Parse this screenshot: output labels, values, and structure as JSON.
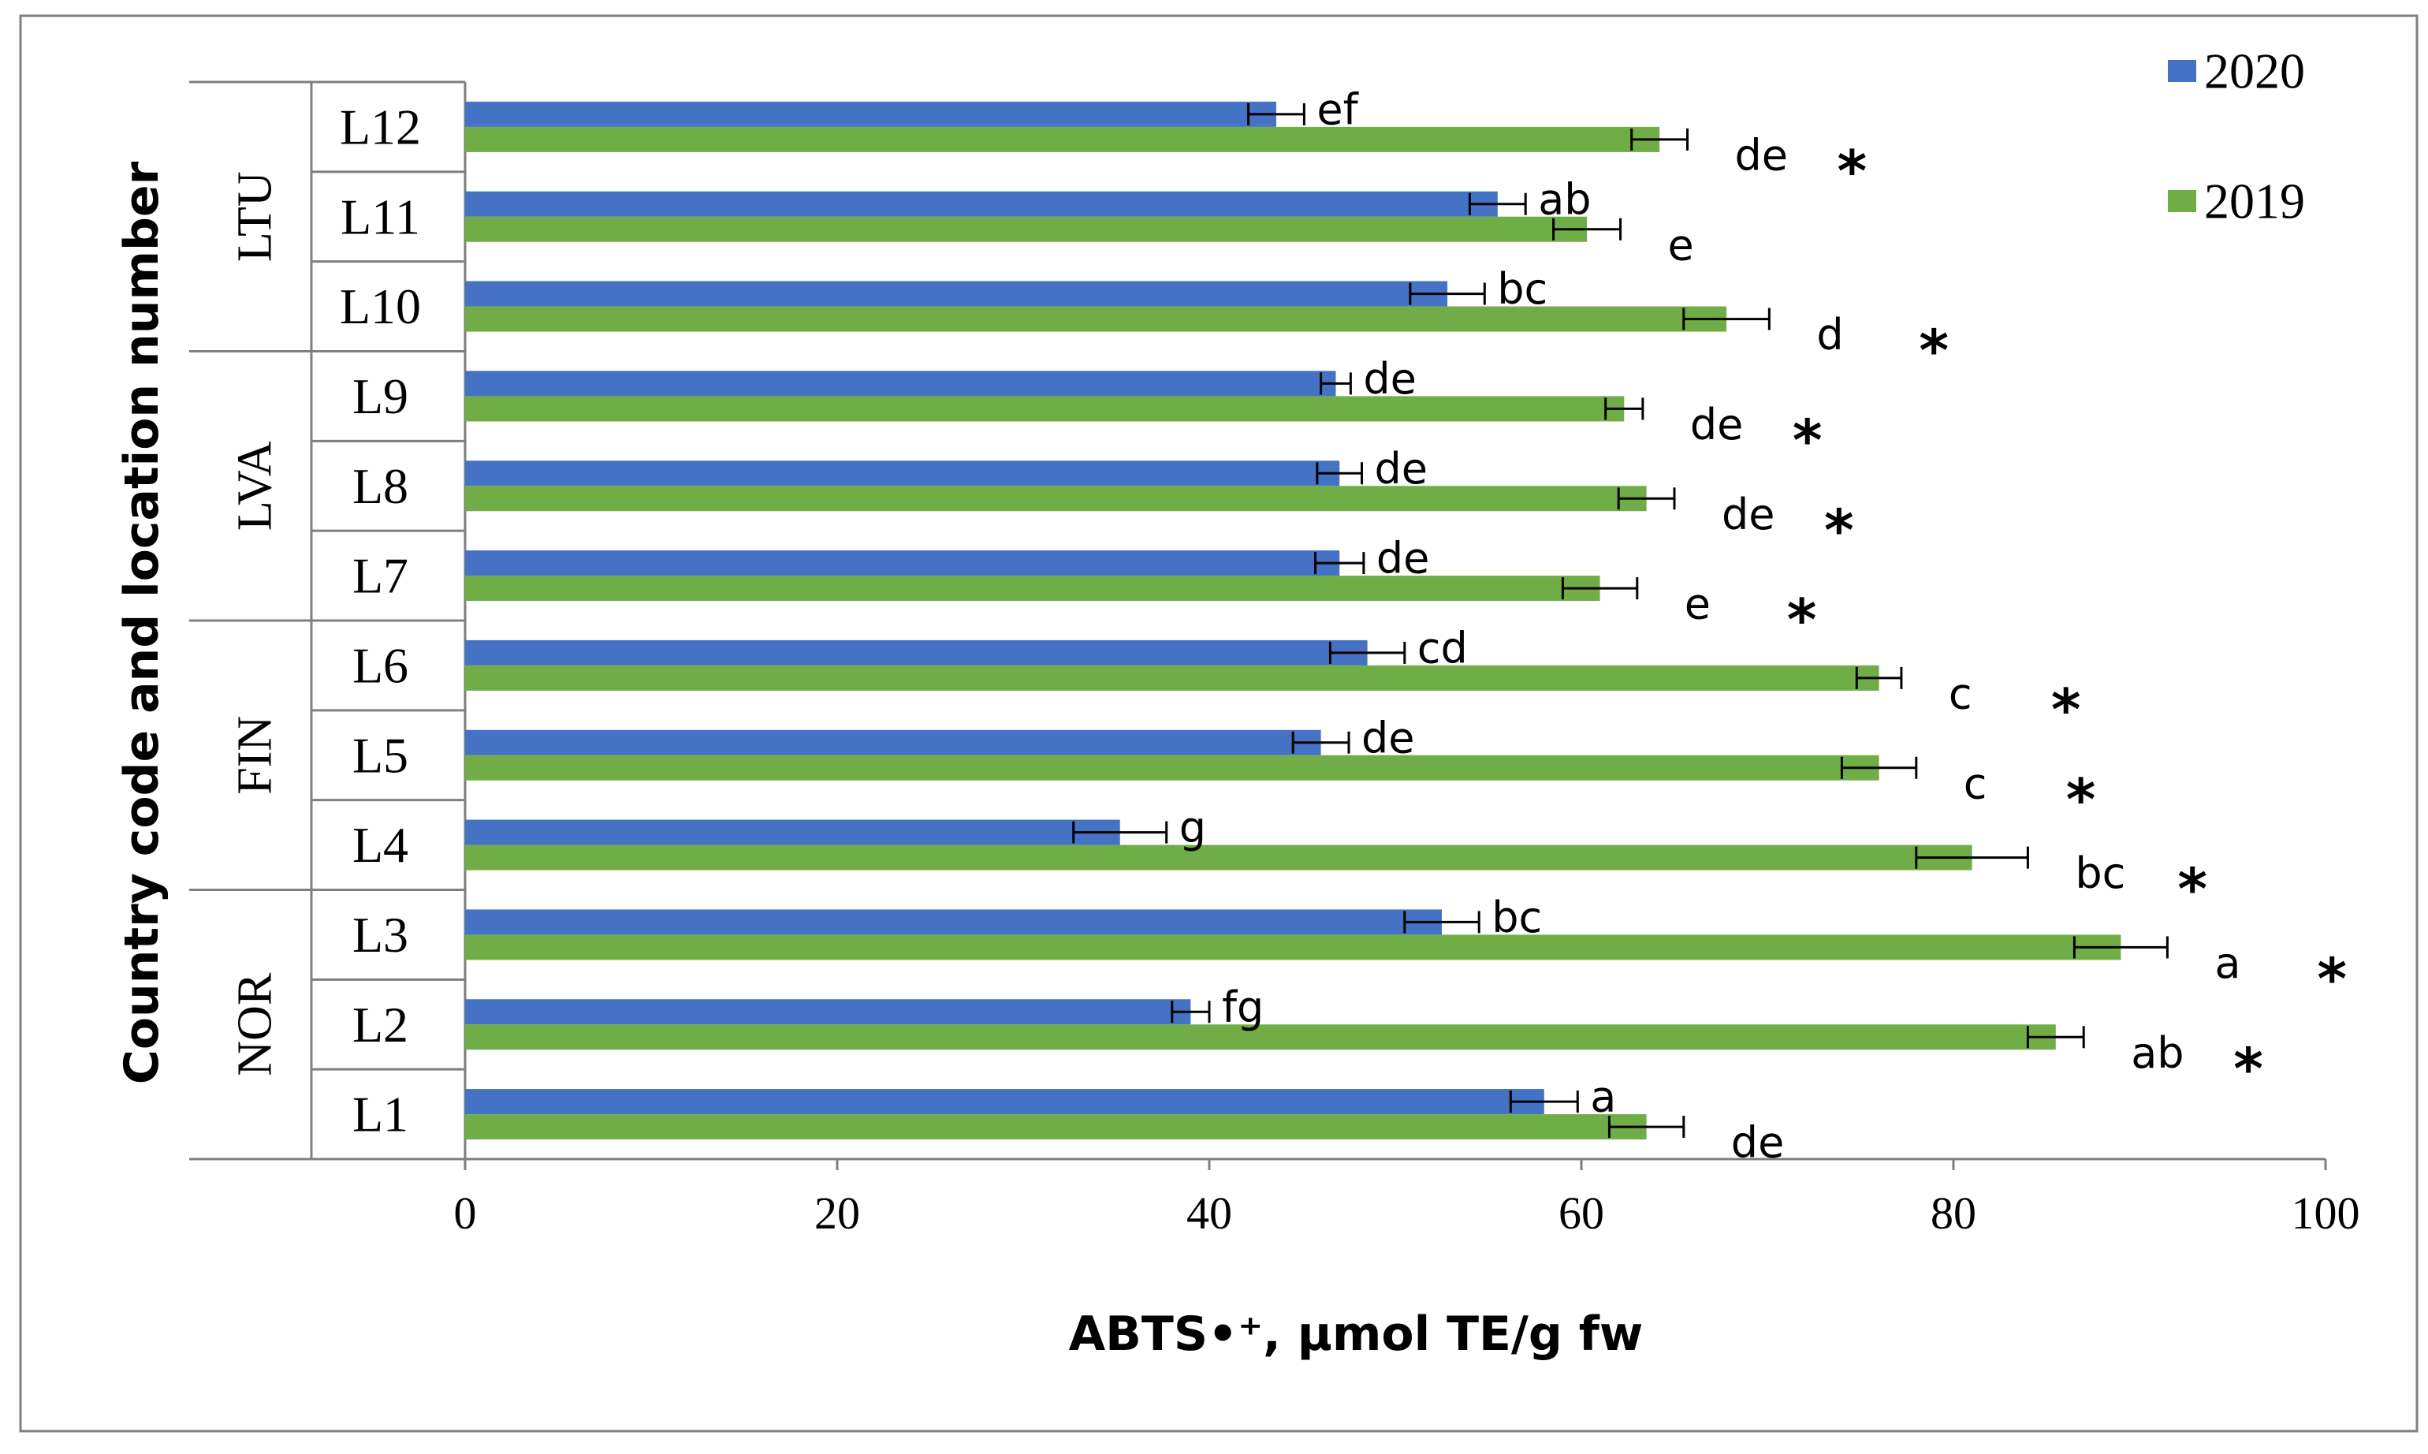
{
  "chart_data": {
    "type": "bar",
    "orientation": "horizontal",
    "xlabel": "ABTS•⁺, µmol TE/g fw",
    "ylabel": "Country code and location number",
    "xlim": [
      0,
      100
    ],
    "xticks": [
      "0",
      "20",
      "40",
      "60",
      "80",
      "100"
    ],
    "grid": false,
    "legend_position": "top-right",
    "categories": [
      "L1",
      "L2",
      "L3",
      "L4",
      "L5",
      "L6",
      "L7",
      "L8",
      "L9",
      "L10",
      "L11",
      "L12"
    ],
    "groups": [
      {
        "name": "NOR",
        "categories": [
          "L1",
          "L2",
          "L3"
        ]
      },
      {
        "name": "FIN",
        "categories": [
          "L4",
          "L5",
          "L6"
        ]
      },
      {
        "name": "LVA",
        "categories": [
          "L7",
          "L8",
          "L9"
        ]
      },
      {
        "name": "LTU",
        "categories": [
          "L10",
          "L11",
          "L12"
        ]
      }
    ],
    "series": [
      {
        "name": "2020",
        "color": "#4472C4",
        "values": [
          58.0,
          39.0,
          52.5,
          35.2,
          46.0,
          48.5,
          47.0,
          47.0,
          46.8,
          52.8,
          55.5,
          43.6
        ],
        "errors": [
          1.8,
          1.0,
          2.0,
          2.5,
          1.5,
          2.0,
          1.3,
          1.2,
          0.8,
          2.0,
          1.5,
          1.5
        ],
        "letters": [
          "a",
          "fg",
          "bc",
          "g",
          "de",
          "cd",
          "de",
          "de",
          "de",
          "bc",
          "ab",
          "ef"
        ]
      },
      {
        "name": "2019",
        "color": "#70AD47",
        "values": [
          63.5,
          85.5,
          89.0,
          81.0,
          76.0,
          76.0,
          61.0,
          63.5,
          62.3,
          67.8,
          60.3,
          64.2
        ],
        "errors": [
          2.0,
          1.5,
          2.5,
          3.0,
          2.0,
          1.2,
          2.0,
          1.5,
          1.0,
          2.3,
          1.8,
          1.5
        ],
        "letters": [
          "de",
          "ab",
          "a",
          "bc",
          "c",
          "c",
          "e",
          "de",
          "de",
          "d",
          "e",
          "de"
        ]
      }
    ],
    "significance": [
      false,
      true,
      true,
      true,
      true,
      true,
      true,
      true,
      true,
      true,
      false,
      true
    ],
    "significance_marker": "*"
  },
  "colors": {
    "border": "#7f7f7f",
    "axis": "#7f7f7f",
    "text": "#000000",
    "error_bar": "#000000"
  }
}
